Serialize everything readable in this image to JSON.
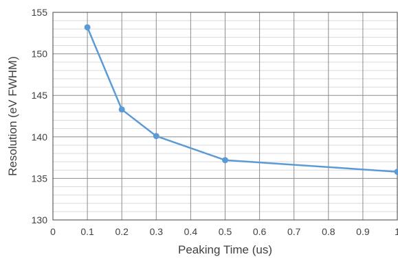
{
  "chart_data": {
    "type": "line",
    "title": "",
    "xlabel": "Peaking Time (us)",
    "ylabel": "Resolution (eV FWHM)",
    "xlim": [
      0,
      1
    ],
    "ylim": [
      130,
      155
    ],
    "x_ticks": [
      "0",
      "0.1",
      "0.2",
      "0.3",
      "0.4",
      "0.5",
      "0.6",
      "0.7",
      "0.8",
      "0.9",
      "1"
    ],
    "y_ticks": [
      "130",
      "135",
      "140",
      "145",
      "150",
      "155"
    ],
    "grid": true,
    "minor_grid": true,
    "legend": "none",
    "series": [
      {
        "color": "#5b9bd5",
        "x": [
          0.1,
          0.2,
          0.3,
          0.5,
          1.0
        ],
        "y": [
          153.2,
          143.3,
          140.1,
          137.2,
          135.8
        ]
      }
    ]
  }
}
